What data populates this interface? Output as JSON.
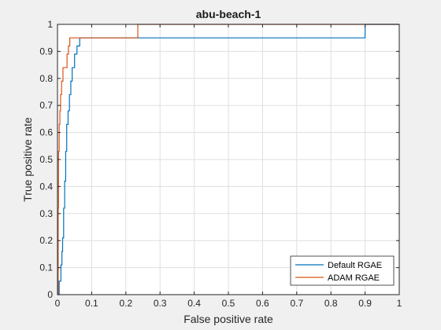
{
  "chart_data": {
    "type": "line",
    "title": "abu-beach-1",
    "xlabel": "False positive rate",
    "ylabel": "True positive rate",
    "xlim": [
      0,
      1
    ],
    "ylim": [
      0,
      1
    ],
    "x_ticks": [
      "0",
      "0.1",
      "0.2",
      "0.3",
      "0.4",
      "0.5",
      "0.6",
      "0.7",
      "0.8",
      "0.9",
      "1"
    ],
    "y_ticks": [
      "0",
      "0.1",
      "0.2",
      "0.3",
      "0.4",
      "0.5",
      "0.6",
      "0.7",
      "0.8",
      "0.9",
      "1"
    ],
    "grid": true,
    "legend_position": "bottom-right",
    "series": [
      {
        "name": "Default RGAE",
        "color": "#0072bd",
        "x": [
          0,
          0.005,
          0.005,
          0.01,
          0.01,
          0.013,
          0.013,
          0.015,
          0.015,
          0.018,
          0.018,
          0.021,
          0.021,
          0.024,
          0.024,
          0.027,
          0.027,
          0.031,
          0.031,
          0.035,
          0.035,
          0.039,
          0.039,
          0.043,
          0.043,
          0.05,
          0.05,
          0.057,
          0.057,
          0.065,
          0.065,
          0.235,
          0.235,
          0.9,
          0.9,
          1.0
        ],
        "y": [
          0,
          0,
          0.05,
          0.05,
          0.11,
          0.11,
          0.16,
          0.16,
          0.21,
          0.21,
          0.32,
          0.32,
          0.42,
          0.42,
          0.53,
          0.53,
          0.63,
          0.63,
          0.68,
          0.68,
          0.74,
          0.74,
          0.79,
          0.79,
          0.84,
          0.84,
          0.89,
          0.89,
          0.92,
          0.92,
          0.95,
          0.95,
          0.95,
          0.95,
          1.0,
          1.0
        ]
      },
      {
        "name": "ADAM RGAE",
        "color": "#d95319",
        "x": [
          0,
          0.002,
          0.002,
          0.003,
          0.003,
          0.005,
          0.005,
          0.007,
          0.007,
          0.009,
          0.009,
          0.012,
          0.012,
          0.016,
          0.016,
          0.022,
          0.022,
          0.028,
          0.028,
          0.032,
          0.032,
          0.036,
          0.036,
          0.235,
          0.235,
          1.0
        ],
        "y": [
          0,
          0,
          0.32,
          0.32,
          0.53,
          0.53,
          0.63,
          0.63,
          0.68,
          0.68,
          0.74,
          0.74,
          0.79,
          0.79,
          0.84,
          0.84,
          0.84,
          0.84,
          0.89,
          0.89,
          0.92,
          0.92,
          0.95,
          0.95,
          1.0,
          1.0
        ]
      }
    ]
  }
}
